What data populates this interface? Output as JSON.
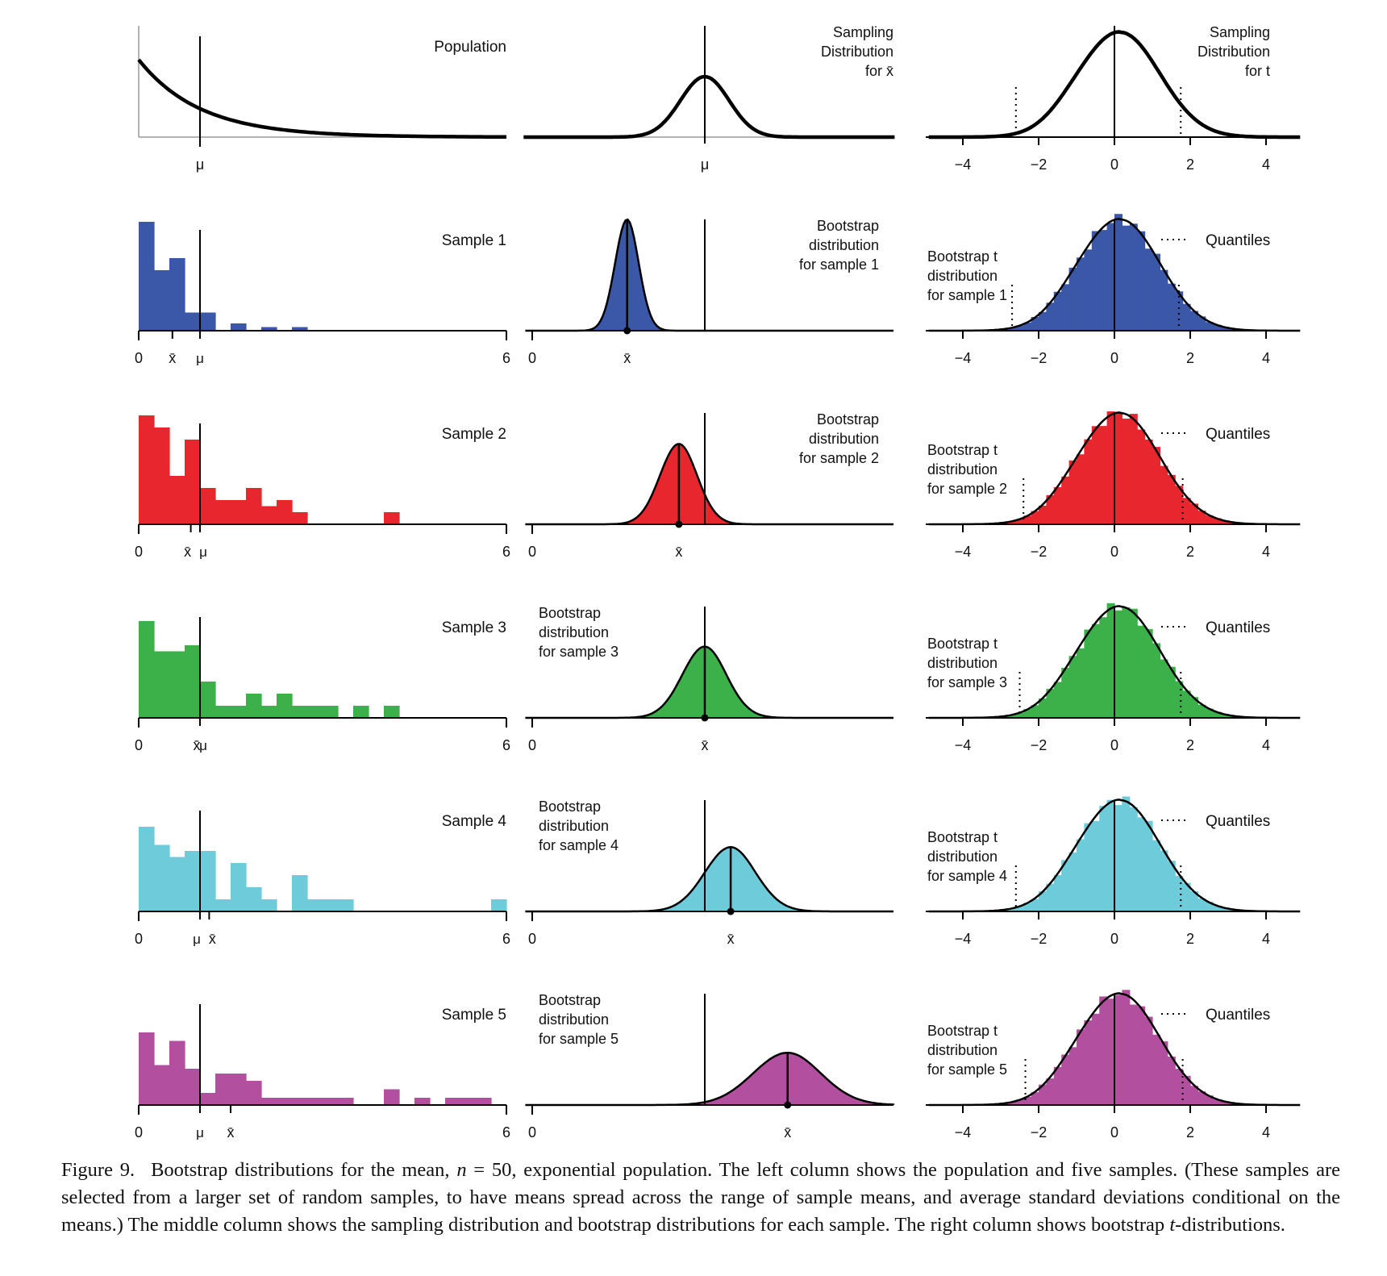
{
  "chart_data": {
    "type": "figure-grid",
    "colors": {
      "population": "#111111",
      "sample_1": "#3b57a8",
      "sample_2": "#e8262e",
      "sample_3": "#3cb049",
      "sample_4": "#6ecbd9",
      "sample_5": "#b24f9f"
    },
    "left_column": {
      "xlim": [
        0,
        6
      ],
      "tick_labels": [
        "0",
        "6"
      ],
      "population": {
        "title": "Population",
        "type": "line",
        "distribution": "exponential",
        "rate": 1,
        "mu": 1,
        "mu_label": "μ"
      },
      "samples": [
        {
          "title": "Sample 1",
          "type": "bar",
          "bin_width": 0.25,
          "counts": [
            9,
            5,
            6,
            1.5,
            1.5,
            0,
            0.6,
            0,
            0.3,
            0,
            0.3,
            0,
            0,
            0,
            0,
            0,
            0,
            0,
            0,
            0,
            0,
            0,
            0,
            0
          ],
          "xbar": 0.55,
          "mu": 1
        },
        {
          "title": "Sample 2",
          "type": "bar",
          "bin_width": 0.25,
          "counts": [
            9,
            8,
            4,
            7,
            3,
            2,
            2,
            3,
            1.5,
            2,
            1,
            0,
            0,
            0,
            0,
            0,
            1,
            0,
            0,
            0,
            0,
            0,
            0,
            0
          ],
          "xbar": 0.85,
          "mu": 1
        },
        {
          "title": "Sample 3",
          "type": "bar",
          "bin_width": 0.25,
          "counts": [
            8,
            5.5,
            5.5,
            6,
            3,
            1,
            1,
            2,
            1,
            2,
            1,
            1,
            1,
            0,
            1,
            0,
            1,
            0,
            0,
            0,
            0,
            0,
            0,
            0
          ],
          "xbar": 1.0,
          "mu": 1
        },
        {
          "title": "Sample 4",
          "type": "bar",
          "bin_width": 0.25,
          "counts": [
            7,
            5.5,
            4.5,
            5,
            5,
            1,
            4,
            2,
            1,
            0,
            3,
            1,
            1,
            1,
            0,
            0,
            0,
            0,
            0,
            0,
            0,
            0,
            0,
            1
          ],
          "xbar": 1.15,
          "mu": 1
        },
        {
          "title": "Sample 5",
          "type": "bar",
          "bin_width": 0.25,
          "counts": [
            6,
            3.3,
            5.3,
            3,
            1,
            2.6,
            2.6,
            2,
            0.6,
            0.6,
            0.6,
            0.6,
            0.6,
            0.6,
            0,
            0,
            1.3,
            0,
            0.6,
            0,
            0.6,
            0.6,
            0.6,
            0
          ],
          "xbar": 1.5,
          "mu": 1
        }
      ]
    },
    "middle_column": {
      "sampling_distribution": {
        "title_lines": [
          "Sampling",
          "Distribution",
          "for x̄"
        ],
        "type": "line",
        "center": 1.0,
        "sd": 0.141,
        "mu_label": "μ"
      },
      "bootstrap": [
        {
          "title_lines": [
            "Bootstrap",
            "distribution",
            "for sample 1"
          ],
          "center": 0.55,
          "sd": 0.07
        },
        {
          "title_lines": [
            "Bootstrap",
            "distribution",
            "for sample 2"
          ],
          "center": 0.85,
          "sd": 0.11
        },
        {
          "title_lines": [
            "Bootstrap",
            "distribution",
            "for sample 3"
          ],
          "center": 1.0,
          "sd": 0.13
        },
        {
          "title_lines": [
            "Bootstrap",
            "distribution",
            "for sample 4"
          ],
          "center": 1.15,
          "sd": 0.15
        },
        {
          "title_lines": [
            "Bootstrap",
            "distribution",
            "for sample 5"
          ],
          "center": 1.48,
          "sd": 0.2
        }
      ],
      "xbar_label": "x̄",
      "zero_label": "0"
    },
    "right_column": {
      "xlim": [
        -4,
        4
      ],
      "ticks": [
        -4,
        -2,
        0,
        2,
        4
      ],
      "tick_labels": [
        "−4",
        "−2",
        "0",
        "2",
        "4"
      ],
      "t_distribution": {
        "title_lines": [
          "Sampling",
          "Distribution",
          "for t"
        ],
        "quantiles": [
          -2.6,
          1.75
        ]
      },
      "quantile_legend": "Quantiles",
      "bootstrap_t": [
        {
          "title_lines": [
            "Bootstrap t",
            "distribution",
            "for sample 1"
          ],
          "quantiles": [
            -2.7,
            1.7
          ]
        },
        {
          "title_lines": [
            "Bootstrap t",
            "distribution",
            "for sample 2"
          ],
          "quantiles": [
            -2.4,
            1.8
          ]
        },
        {
          "title_lines": [
            "Bootstrap t",
            "distribution",
            "for sample 3"
          ],
          "quantiles": [
            -2.5,
            1.75
          ]
        },
        {
          "title_lines": [
            "Bootstrap t",
            "distribution",
            "for sample 4"
          ],
          "quantiles": [
            -2.6,
            1.75
          ]
        },
        {
          "title_lines": [
            "Bootstrap t",
            "distribution",
            "for sample 5"
          ],
          "quantiles": [
            -2.35,
            1.8
          ]
        }
      ]
    }
  },
  "caption": {
    "label": "Figure 9.",
    "text_1": "Bootstrap distributions for the mean, ",
    "n_var": "n",
    "text_2": " = 50, exponential population. The left column shows the population and five samples. (These samples are selected from a larger set of random samples, to have means spread across the range of sample means, and average standard deviations conditional on the means.) The middle column shows the sampling distribution and bootstrap distributions for each sample. The right column shows bootstrap ",
    "t_var": "t",
    "text_3": "-distributions."
  }
}
